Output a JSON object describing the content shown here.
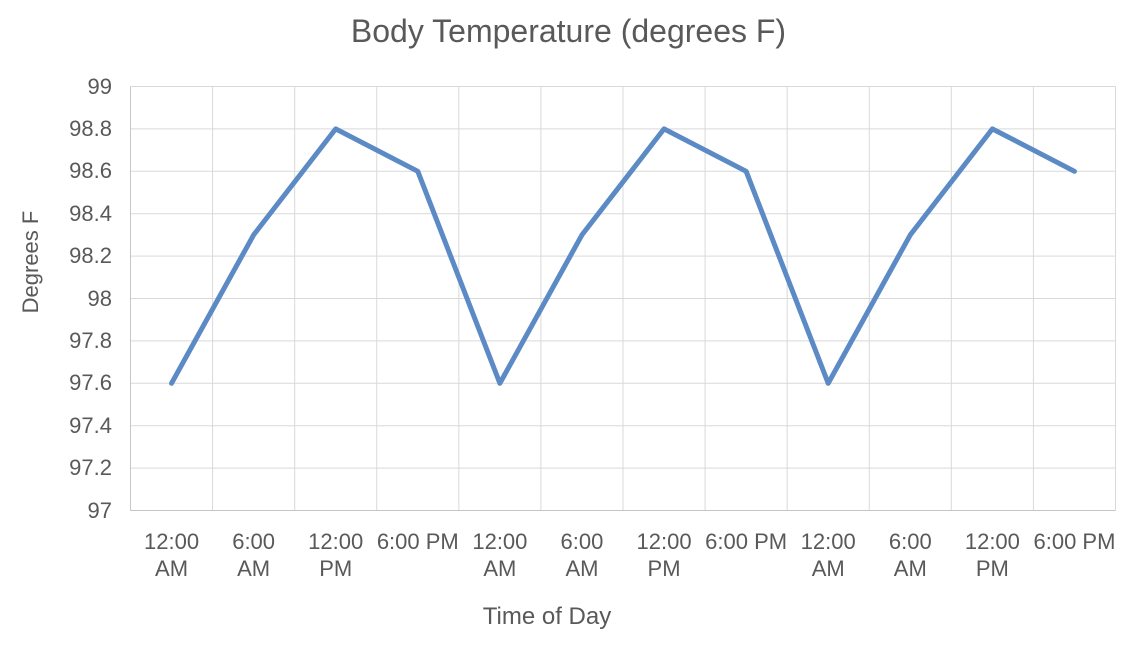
{
  "chart_data": {
    "type": "line",
    "title": "Body Temperature (degrees F)",
    "xlabel": "Time of Day",
    "ylabel": "Degrees F",
    "categories": [
      "12:00 AM",
      "6:00 AM",
      "12:00 PM",
      "6:00 PM",
      "12:00 AM",
      "6:00 AM",
      "12:00 PM",
      "6:00 PM",
      "12:00 AM",
      "6:00 AM",
      "12:00 PM",
      "6:00 PM"
    ],
    "x_tick_display": [
      "12:00\nAM",
      "6:00\nAM",
      "12:00\nPM",
      "6:00 PM",
      "12:00\nAM",
      "6:00\nAM",
      "12:00\nPM",
      "6:00 PM",
      "12:00\nAM",
      "6:00\nAM",
      "12:00\nPM",
      "6:00 PM"
    ],
    "series": [
      {
        "name": "",
        "values": [
          97.6,
          98.3,
          98.8,
          98.6,
          97.6,
          98.3,
          98.8,
          98.6,
          97.6,
          98.3,
          98.8,
          98.6
        ]
      }
    ],
    "ylim": [
      97,
      99
    ],
    "yticks": [
      97,
      97.2,
      97.4,
      97.6,
      97.8,
      98,
      98.2,
      98.4,
      98.6,
      98.8,
      99
    ],
    "ytick_labels": [
      "97",
      "97.2",
      "97.4",
      "97.6",
      "97.8",
      "98",
      "98.2",
      "98.4",
      "98.6",
      "98.8",
      "99"
    ],
    "grid": "both",
    "legend": "none",
    "colors": {
      "line": "#5b8ac5",
      "gridline": "#d9d9d9",
      "axis_line": "#c6c6c6",
      "text": "#595959",
      "background": "#ffffff"
    }
  }
}
